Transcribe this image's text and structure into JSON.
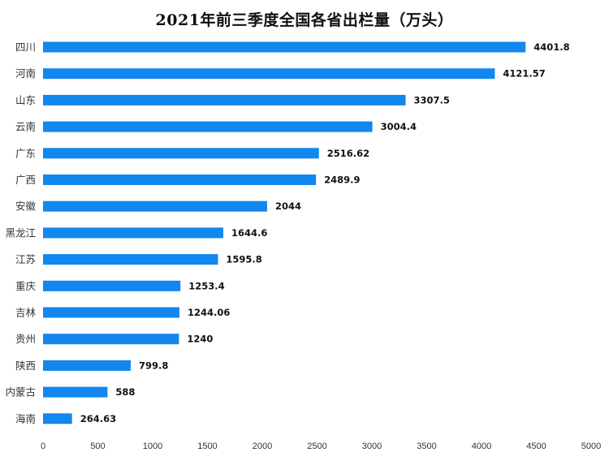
{
  "chart_data": {
    "type": "bar",
    "orientation": "horizontal",
    "title": "2021年前三季度全国各省出栏量（万头）",
    "xlabel": "",
    "ylabel": "",
    "categories": [
      "四川",
      "河南",
      "山东",
      "云南",
      "广东",
      "广西",
      "安徽",
      "黑龙江",
      "江苏",
      "重庆",
      "吉林",
      "贵州",
      "陕西",
      "内蒙古",
      "海南"
    ],
    "values": [
      4401.8,
      4121.57,
      3307.5,
      3004.4,
      2516.62,
      2489.9,
      2044,
      1644.6,
      1595.8,
      1253.4,
      1244.06,
      1240,
      799.8,
      588,
      264.63
    ],
    "value_labels": [
      "4401.8",
      "4121.57",
      "3307.5",
      "3004.4",
      "2516.62",
      "2489.9",
      "2044",
      "1644.6",
      "1595.8",
      "1253.4",
      "1244.06",
      "1240",
      "799.8",
      "588",
      "264.63"
    ],
    "xlim": [
      0,
      5000
    ],
    "x_ticks": [
      "0",
      "500",
      "1000",
      "1500",
      "2000",
      "2500",
      "3000",
      "3500",
      "4000",
      "4500",
      "5000"
    ],
    "grid": false,
    "legend": "none",
    "bar_color": "#1287ee"
  }
}
